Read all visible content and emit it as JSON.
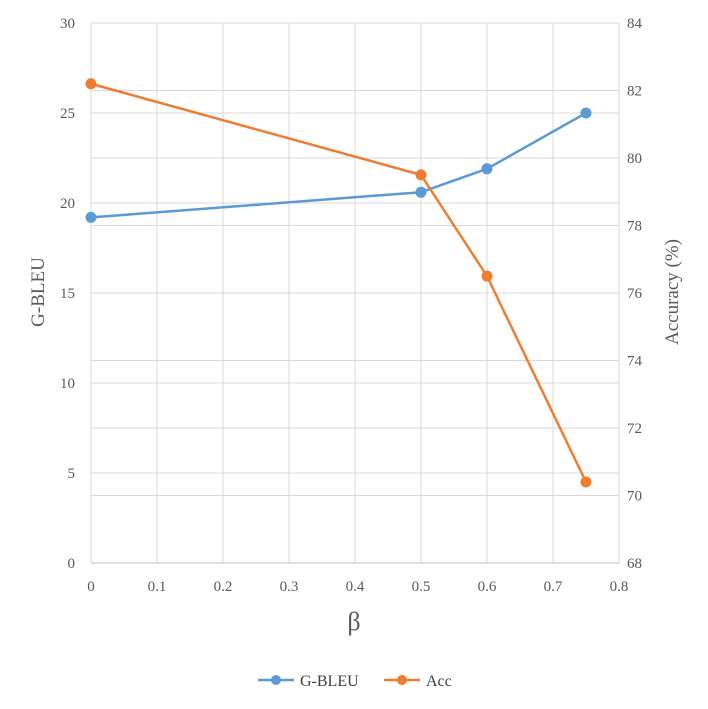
{
  "chart_data": {
    "type": "line",
    "xlabel": "β",
    "ylabel_left": "G-BLEU",
    "ylabel_right": "Accuracy (%)",
    "x_ticks": [
      "0",
      "0.1",
      "0.2",
      "0.3",
      "0.4",
      "0.5",
      "0.6",
      "0.7",
      "0.8"
    ],
    "y_left_ticks": [
      "0",
      "5",
      "10",
      "15",
      "20",
      "25",
      "30"
    ],
    "y_right_ticks": [
      "68",
      "70",
      "72",
      "74",
      "76",
      "78",
      "80",
      "82",
      "84"
    ],
    "xlim": [
      0,
      0.8
    ],
    "ylim_left": [
      0,
      30
    ],
    "ylim_right": [
      68,
      84
    ],
    "grid": true,
    "legend_position": "bottom",
    "series": [
      {
        "name": "G-BLEU",
        "axis": "left",
        "color": "#5b9bd5",
        "x": [
          0,
          0.5,
          0.6,
          0.75
        ],
        "y": [
          19.2,
          20.6,
          21.9,
          25.0
        ]
      },
      {
        "name": "Acc",
        "axis": "right",
        "color": "#ed7d31",
        "x": [
          0,
          0.5,
          0.6,
          0.75
        ],
        "y": [
          82.2,
          79.5,
          76.5,
          70.4
        ]
      }
    ]
  }
}
